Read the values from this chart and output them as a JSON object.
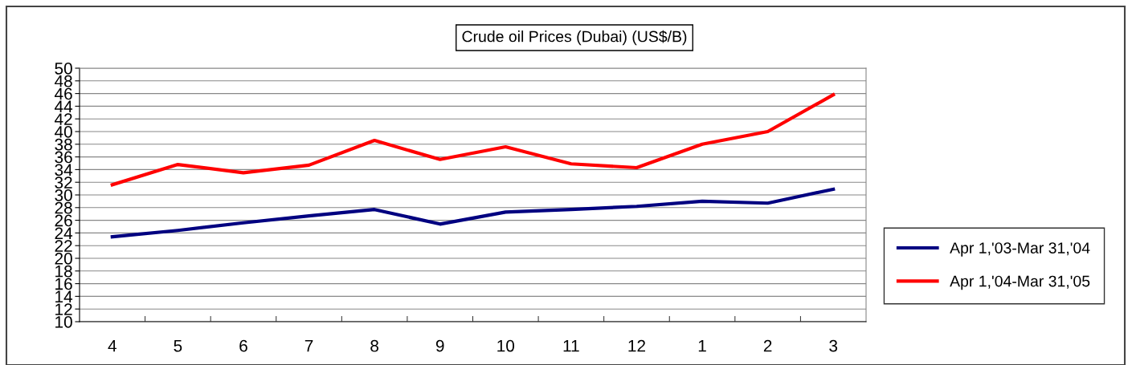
{
  "chart_data": {
    "type": "line",
    "title": "Crude oil Prices (Dubai) (US$/B)",
    "categories": [
      "4",
      "5",
      "6",
      "7",
      "8",
      "9",
      "10",
      "11",
      "12",
      "1",
      "2",
      "3"
    ],
    "series": [
      {
        "name": "Apr 1,'03-Mar 31,'04",
        "color": "#000080",
        "values": [
          23.4,
          24.4,
          25.6,
          26.7,
          27.7,
          25.4,
          27.3,
          27.7,
          28.2,
          29.0,
          28.7,
          30.9
        ]
      },
      {
        "name": "Apr 1,'04-Mar 31,'05",
        "color": "#ff0000",
        "values": [
          31.6,
          34.8,
          33.5,
          34.7,
          38.6,
          35.6,
          37.6,
          34.9,
          34.3,
          38.0,
          40.0,
          45.8
        ]
      }
    ],
    "ylim": [
      10,
      50
    ],
    "yticks": [
      10,
      12,
      14,
      16,
      18,
      20,
      22,
      24,
      26,
      28,
      30,
      32,
      34,
      36,
      38,
      40,
      42,
      44,
      46,
      48,
      50
    ],
    "grid": "y",
    "legend": "right",
    "marker": "none",
    "line_style": "solid"
  }
}
